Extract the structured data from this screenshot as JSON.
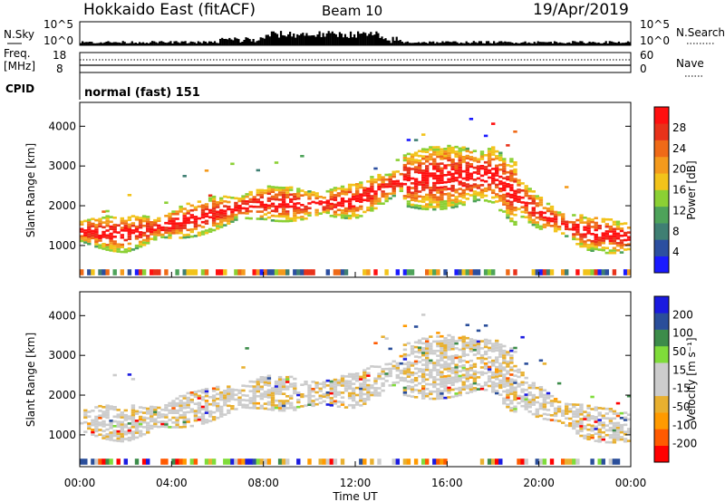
{
  "header": {
    "title": "Hokkaido East (fitACF)",
    "beam": "Beam 10",
    "date": "19/Apr/2019"
  },
  "top_panels": {
    "nsky_label": "N.Sky",
    "nsky_ticks": [
      "10^5",
      "10^0"
    ],
    "nsky_right_ticks": [
      "10^5",
      "10^0"
    ],
    "nsearch_label": "N.Search",
    "freq_label_1": "Freq.",
    "freq_label_2": "[MHz]",
    "freq_ticks": [
      "18",
      "8"
    ],
    "nave_ticks": [
      "60",
      "0"
    ],
    "nave_label": "Nave",
    "cpid_label": "CPID",
    "cpid_value": "normal (fast) 151"
  },
  "colors": {
    "power_scale": [
      "#1a1aff",
      "#2c4fa0",
      "#3f7f73",
      "#4ea35a",
      "#8bd034",
      "#f2c31a",
      "#f49a1c",
      "#ef6a17",
      "#e8321a",
      "#ff1010"
    ],
    "velocity_scale": [
      "#ff0000",
      "#ff5a00",
      "#ff9a00",
      "#e8b030",
      "#cccccc",
      "#cccccc",
      "#7fdc3a",
      "#3c8c4a",
      "#2a4e9a",
      "#1a1ae0"
    ]
  },
  "chart_data": [
    {
      "type": "heatmap",
      "name": "power",
      "ylabel": "Slant Range [km]",
      "yticks": [
        1000,
        2000,
        3000,
        4000
      ],
      "ylim": [
        200,
        4600
      ],
      "xlim": [
        0,
        24
      ],
      "colorbar": {
        "label": "Power [dB]",
        "ticks": [
          "28",
          "24",
          "20",
          "16",
          "12",
          "8",
          "4"
        ],
        "range": [
          0,
          32
        ]
      },
      "echo_band_center_km": [
        [
          0,
          1350
        ],
        [
          2,
          1250
        ],
        [
          4,
          1500
        ],
        [
          6,
          1800
        ],
        [
          8,
          2050
        ],
        [
          10,
          2000
        ],
        [
          12,
          2100
        ],
        [
          14,
          2600
        ],
        [
          16,
          2700
        ],
        [
          18,
          2750
        ],
        [
          20,
          1800
        ],
        [
          22,
          1300
        ],
        [
          24,
          1150
        ]
      ]
    },
    {
      "type": "heatmap",
      "name": "velocity",
      "ylabel": "Slant Range [km]",
      "yticks": [
        1000,
        2000,
        3000,
        4000
      ],
      "ylim": [
        200,
        4600
      ],
      "xlim": [
        0,
        24
      ],
      "xlabel": "Time UT",
      "xticks": [
        "00:00",
        "04:00",
        "08:00",
        "12:00",
        "16:00",
        "20:00",
        "00:00"
      ],
      "colorbar": {
        "label": "Velocity [m s⁻¹]",
        "ticks": [
          "200",
          "100",
          "50",
          "15",
          "-15",
          "-50",
          "-100",
          "-200"
        ],
        "range": [
          -250,
          250
        ]
      }
    }
  ]
}
